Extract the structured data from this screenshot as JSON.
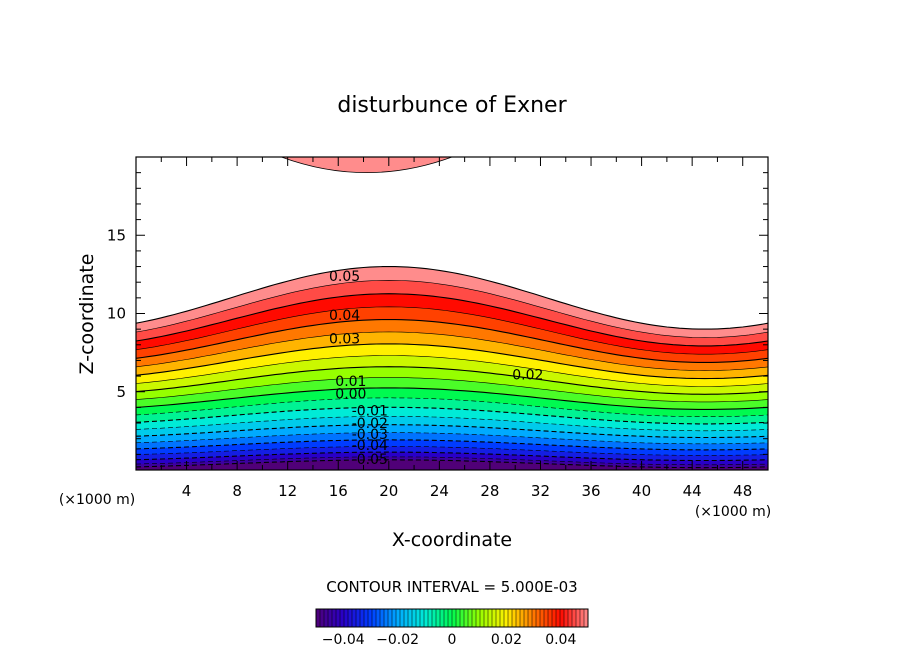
{
  "chart_data": {
    "type": "contour",
    "title": "disturbunce of Exner",
    "xlabel": "X-coordinate",
    "ylabel": "Z-coordinate",
    "x_unit_note": "(×1000 m)",
    "y_unit_note": "(×1000 m)",
    "xlim": [
      0,
      50
    ],
    "ylim": [
      0,
      20
    ],
    "x_ticks": [
      4,
      8,
      12,
      16,
      20,
      24,
      28,
      32,
      36,
      40,
      44,
      48
    ],
    "y_ticks": [
      5,
      10,
      15
    ],
    "contour_interval_text": "CONTOUR INTERVAL = 5.000E-03",
    "contour_interval": 0.005,
    "value_range": [
      -0.05,
      0.05
    ],
    "colorbar_ticks": [
      "−0.04",
      "−0.02",
      "0",
      "0.02",
      "0.04"
    ],
    "colorbar_tick_values": [
      -0.04,
      -0.02,
      0,
      0.02,
      0.04
    ],
    "contour_labels": [
      {
        "text": "0.05",
        "x": 16.5,
        "z": 12.4
      },
      {
        "text": "0.04",
        "x": 16.5,
        "z": 9.9
      },
      {
        "text": "0.03",
        "x": 16.5,
        "z": 8.4
      },
      {
        "text": "0.02",
        "x": 31.0,
        "z": 6.1
      },
      {
        "text": "0.01",
        "x": 17.0,
        "z": 5.7
      },
      {
        "text": "0.00",
        "x": 17.0,
        "z": 4.9
      },
      {
        "text": "-0.01",
        "x": 18.5,
        "z": 3.8
      },
      {
        "text": "-0.02",
        "x": 18.5,
        "z": 3.0
      },
      {
        "text": "-0.03",
        "x": 18.5,
        "z": 2.3
      },
      {
        "text": "-0.04",
        "x": 18.5,
        "z": 1.6
      },
      {
        "text": "-0.05",
        "x": 18.5,
        "z": 0.7
      }
    ],
    "upper_high_region": {
      "value": 0.05,
      "x_range": [
        11.5,
        25
      ],
      "z_min": 19.0,
      "z_top": 20
    },
    "colors": {
      "low": "#5a0080",
      "mid_low": "#00e0ff",
      "zero": "#00ff00",
      "mid_high": "#ffff00",
      "high": "#ff0000",
      "top": "#ff9090"
    }
  }
}
